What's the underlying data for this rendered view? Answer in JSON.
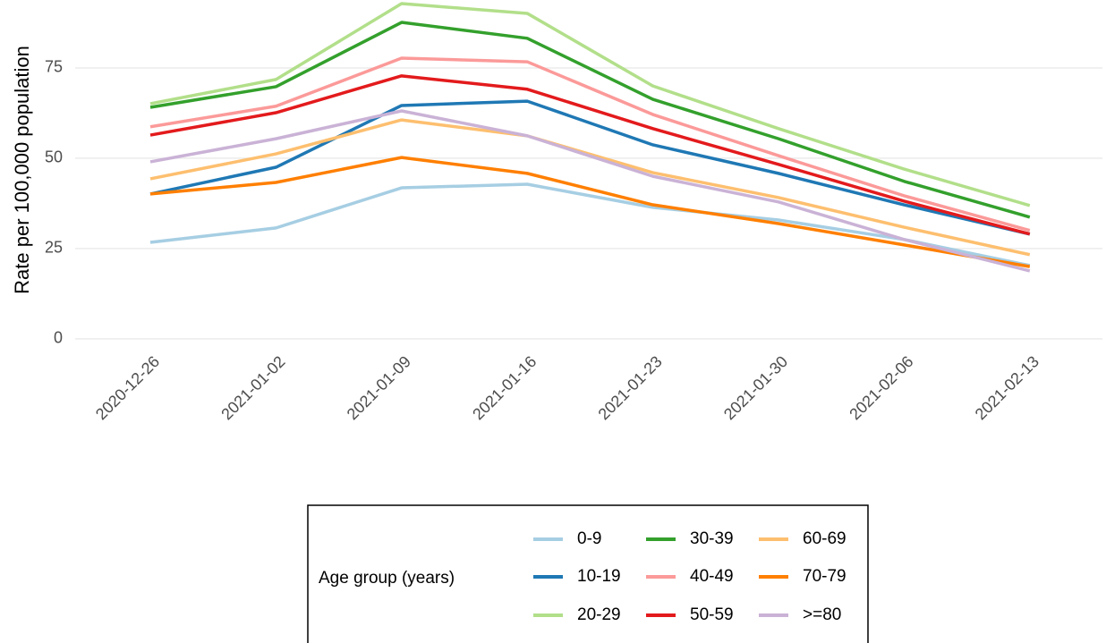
{
  "chart_data": {
    "type": "line",
    "y_label": "Rate per 100,000 population",
    "categories": [
      "2020-12-26",
      "2021-01-02",
      "2021-01-09",
      "2021-01-16",
      "2021-01-23",
      "2021-01-30",
      "2021-02-06",
      "2021-02-13"
    ],
    "ylim": [
      -3,
      93.8
    ],
    "yticks": [
      0,
      25,
      50,
      75
    ],
    "grid": true,
    "legend": {
      "title": "Age group (years)",
      "position": "bottom"
    },
    "series": [
      {
        "name": "0-9",
        "color": "#a6cee3",
        "values": [
          26.7,
          30.7,
          41.8,
          42.8,
          36.4,
          32.9,
          27.5,
          20.3
        ]
      },
      {
        "name": "10-19",
        "color": "#1f78b4",
        "values": [
          40.1,
          47.5,
          64.6,
          65.8,
          53.7,
          45.8,
          37.1,
          29.0
        ]
      },
      {
        "name": "20-29",
        "color": "#b2df8a",
        "values": [
          65.1,
          71.8,
          92.8,
          90.1,
          70.0,
          58.2,
          47.0,
          36.9
        ]
      },
      {
        "name": "30-39",
        "color": "#33a02c",
        "values": [
          64.1,
          69.8,
          87.6,
          83.2,
          66.3,
          55.4,
          43.6,
          33.7
        ]
      },
      {
        "name": "40-49",
        "color": "#fb9a99",
        "values": [
          58.7,
          64.4,
          77.7,
          76.7,
          62.1,
          50.7,
          39.6,
          30.0
        ]
      },
      {
        "name": "50-59",
        "color": "#e31a1c",
        "values": [
          56.4,
          62.6,
          72.8,
          69.1,
          58.2,
          48.3,
          38.1,
          29.0
        ]
      },
      {
        "name": "60-69",
        "color": "#fdbf6f",
        "values": [
          44.3,
          51.2,
          60.6,
          56.2,
          46.0,
          39.1,
          30.9,
          23.3
        ]
      },
      {
        "name": "70-79",
        "color": "#ff7f00",
        "values": [
          40.1,
          43.3,
          50.2,
          45.8,
          37.1,
          31.9,
          26.0,
          20.0
        ]
      },
      {
        "name": ">=80",
        "color": "#cab2d6",
        "values": [
          49.0,
          55.4,
          63.1,
          56.2,
          45.0,
          37.9,
          27.5,
          18.8
        ]
      }
    ]
  }
}
